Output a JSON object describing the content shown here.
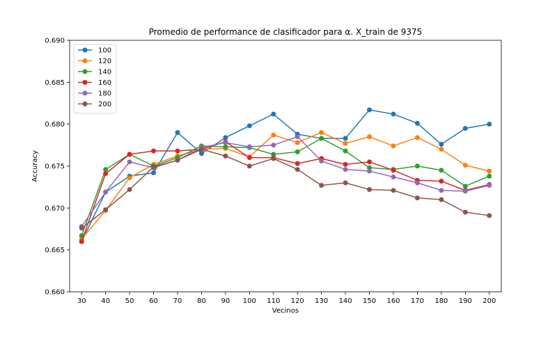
{
  "chart_data": {
    "type": "line",
    "title": "Promedio de performance de clasificador para α. X_train de 9375",
    "xlabel": "Vecinos",
    "ylabel": "Accuracy",
    "ylim": [
      0.66,
      0.69
    ],
    "xlim": [
      25,
      205
    ],
    "x": [
      30,
      40,
      50,
      60,
      70,
      80,
      90,
      100,
      110,
      120,
      130,
      140,
      150,
      160,
      170,
      180,
      190,
      200
    ],
    "xticks": [
      "30",
      "40",
      "50",
      "60",
      "70",
      "80",
      "90",
      "100",
      "110",
      "120",
      "130",
      "140",
      "150",
      "160",
      "170",
      "180",
      "190",
      "200"
    ],
    "yticks": [
      "0.660",
      "0.665",
      "0.670",
      "0.675",
      "0.680",
      "0.685",
      "0.690"
    ],
    "legend_position": "top-left",
    "grid": false,
    "series": [
      {
        "name": "100",
        "color": "#1f77b4",
        "values": [
          0.666,
          0.6719,
          0.6738,
          0.6742,
          0.679,
          0.6765,
          0.6784,
          0.6798,
          0.6812,
          0.6788,
          0.6783,
          0.6783,
          0.6817,
          0.6812,
          0.6801,
          0.6776,
          0.6795,
          0.68
        ]
      },
      {
        "name": "120",
        "color": "#ff7f0e",
        "values": [
          0.6663,
          0.6697,
          0.6736,
          0.6752,
          0.6762,
          0.677,
          0.6771,
          0.6761,
          0.6787,
          0.6778,
          0.679,
          0.6777,
          0.6785,
          0.6774,
          0.6784,
          0.677,
          0.6751,
          0.6744
        ]
      },
      {
        "name": "140",
        "color": "#2ca02c",
        "values": [
          0.6667,
          0.6746,
          0.6764,
          0.675,
          0.676,
          0.6774,
          0.6773,
          0.6772,
          0.6764,
          0.6767,
          0.6783,
          0.6768,
          0.6748,
          0.6746,
          0.675,
          0.6745,
          0.6726,
          0.6738
        ]
      },
      {
        "name": "160",
        "color": "#d62728",
        "values": [
          0.666,
          0.6741,
          0.6764,
          0.6768,
          0.6768,
          0.677,
          0.6779,
          0.676,
          0.676,
          0.6753,
          0.6759,
          0.6752,
          0.6755,
          0.6745,
          0.6733,
          0.6732,
          0.6721,
          0.6728
        ]
      },
      {
        "name": "180",
        "color": "#9467bd",
        "values": [
          0.6678,
          0.6719,
          0.6755,
          0.6748,
          0.6757,
          0.6772,
          0.6778,
          0.6773,
          0.6775,
          0.6785,
          0.6756,
          0.6746,
          0.6744,
          0.6737,
          0.673,
          0.6721,
          0.672,
          0.6727
        ]
      },
      {
        "name": "200",
        "color": "#8c564b",
        "values": [
          0.6676,
          0.6698,
          0.6722,
          0.6749,
          0.6757,
          0.677,
          0.6762,
          0.675,
          0.6759,
          0.6746,
          0.6727,
          0.673,
          0.6722,
          0.6721,
          0.6712,
          0.671,
          0.6695,
          0.6691
        ]
      }
    ]
  }
}
